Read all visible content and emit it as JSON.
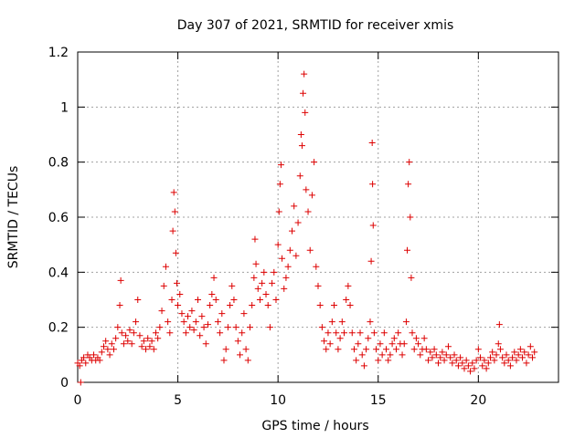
{
  "chart_data": {
    "type": "scatter",
    "title": "Day 307 of 2021, SRMTID for receiver xmis",
    "xlabel": "GPS time / hours",
    "ylabel": "SRMTID / TECUs",
    "xlim": [
      0,
      24
    ],
    "ylim": [
      0,
      1.2
    ],
    "x_ticks": [
      0,
      5,
      10,
      15,
      20
    ],
    "x_tick_labels": [
      "0",
      "5",
      "10",
      "15",
      "20"
    ],
    "y_ticks": [
      0,
      0.2,
      0.4,
      0.6,
      0.8,
      1.0,
      1.2
    ],
    "y_tick_labels": [
      "0",
      "0.2",
      "0.4",
      "0.6",
      "0.8",
      "1",
      "1.2"
    ],
    "grid": true,
    "marker": "+",
    "color": "#dd0000",
    "series": [
      {
        "name": "SRMTID",
        "points": [
          [
            0.0,
            0.07
          ],
          [
            0.1,
            0.06
          ],
          [
            0.15,
            0.0
          ],
          [
            0.2,
            0.08
          ],
          [
            0.3,
            0.09
          ],
          [
            0.4,
            0.07
          ],
          [
            0.5,
            0.1
          ],
          [
            0.6,
            0.09
          ],
          [
            0.7,
            0.08
          ],
          [
            0.8,
            0.1
          ],
          [
            0.9,
            0.08
          ],
          [
            1.0,
            0.09
          ],
          [
            1.1,
            0.08
          ],
          [
            1.2,
            0.11
          ],
          [
            1.3,
            0.13
          ],
          [
            1.4,
            0.15
          ],
          [
            1.5,
            0.12
          ],
          [
            1.6,
            0.1
          ],
          [
            1.7,
            0.14
          ],
          [
            1.8,
            0.12
          ],
          [
            1.9,
            0.16
          ],
          [
            2.0,
            0.2
          ],
          [
            2.1,
            0.28
          ],
          [
            2.15,
            0.37
          ],
          [
            2.2,
            0.18
          ],
          [
            2.3,
            0.14
          ],
          [
            2.4,
            0.17
          ],
          [
            2.5,
            0.15
          ],
          [
            2.6,
            0.19
          ],
          [
            2.7,
            0.14
          ],
          [
            2.8,
            0.18
          ],
          [
            2.9,
            0.22
          ],
          [
            3.0,
            0.3
          ],
          [
            3.1,
            0.17
          ],
          [
            3.2,
            0.13
          ],
          [
            3.3,
            0.15
          ],
          [
            3.4,
            0.12
          ],
          [
            3.5,
            0.16
          ],
          [
            3.6,
            0.13
          ],
          [
            3.7,
            0.15
          ],
          [
            3.8,
            0.12
          ],
          [
            3.9,
            0.18
          ],
          [
            4.0,
            0.16
          ],
          [
            4.1,
            0.2
          ],
          [
            4.2,
            0.26
          ],
          [
            4.3,
            0.35
          ],
          [
            4.4,
            0.42
          ],
          [
            4.5,
            0.22
          ],
          [
            4.6,
            0.18
          ],
          [
            4.7,
            0.3
          ],
          [
            4.75,
            0.55
          ],
          [
            4.8,
            0.69
          ],
          [
            4.85,
            0.62
          ],
          [
            4.9,
            0.47
          ],
          [
            4.95,
            0.36
          ],
          [
            5.0,
            0.28
          ],
          [
            5.1,
            0.32
          ],
          [
            5.2,
            0.25
          ],
          [
            5.3,
            0.22
          ],
          [
            5.4,
            0.18
          ],
          [
            5.5,
            0.24
          ],
          [
            5.6,
            0.2
          ],
          [
            5.7,
            0.26
          ],
          [
            5.8,
            0.19
          ],
          [
            5.9,
            0.22
          ],
          [
            6.0,
            0.3
          ],
          [
            6.1,
            0.17
          ],
          [
            6.2,
            0.24
          ],
          [
            6.3,
            0.2
          ],
          [
            6.4,
            0.14
          ],
          [
            6.5,
            0.21
          ],
          [
            6.6,
            0.28
          ],
          [
            6.7,
            0.32
          ],
          [
            6.8,
            0.38
          ],
          [
            6.9,
            0.3
          ],
          [
            7.0,
            0.22
          ],
          [
            7.1,
            0.18
          ],
          [
            7.2,
            0.25
          ],
          [
            7.3,
            0.08
          ],
          [
            7.4,
            0.12
          ],
          [
            7.5,
            0.2
          ],
          [
            7.6,
            0.28
          ],
          [
            7.7,
            0.35
          ],
          [
            7.8,
            0.3
          ],
          [
            7.9,
            0.2
          ],
          [
            8.0,
            0.15
          ],
          [
            8.1,
            0.1
          ],
          [
            8.2,
            0.18
          ],
          [
            8.3,
            0.25
          ],
          [
            8.4,
            0.12
          ],
          [
            8.5,
            0.08
          ],
          [
            8.6,
            0.2
          ],
          [
            8.7,
            0.28
          ],
          [
            8.8,
            0.38
          ],
          [
            8.85,
            0.52
          ],
          [
            8.9,
            0.43
          ],
          [
            9.0,
            0.34
          ],
          [
            9.1,
            0.3
          ],
          [
            9.2,
            0.36
          ],
          [
            9.3,
            0.4
          ],
          [
            9.4,
            0.32
          ],
          [
            9.5,
            0.28
          ],
          [
            9.6,
            0.2
          ],
          [
            9.7,
            0.36
          ],
          [
            9.8,
            0.4
          ],
          [
            9.9,
            0.3
          ],
          [
            10.0,
            0.5
          ],
          [
            10.05,
            0.62
          ],
          [
            10.1,
            0.72
          ],
          [
            10.15,
            0.79
          ],
          [
            10.2,
            0.45
          ],
          [
            10.3,
            0.34
          ],
          [
            10.4,
            0.38
          ],
          [
            10.5,
            0.42
          ],
          [
            10.6,
            0.48
          ],
          [
            10.7,
            0.55
          ],
          [
            10.8,
            0.64
          ],
          [
            10.9,
            0.46
          ],
          [
            11.0,
            0.58
          ],
          [
            11.1,
            0.75
          ],
          [
            11.15,
            0.9
          ],
          [
            11.2,
            0.86
          ],
          [
            11.25,
            1.05
          ],
          [
            11.3,
            1.12
          ],
          [
            11.35,
            0.98
          ],
          [
            11.4,
            0.7
          ],
          [
            11.5,
            0.62
          ],
          [
            11.6,
            0.48
          ],
          [
            11.7,
            0.68
          ],
          [
            11.8,
            0.8
          ],
          [
            11.9,
            0.42
          ],
          [
            12.0,
            0.35
          ],
          [
            12.1,
            0.28
          ],
          [
            12.2,
            0.2
          ],
          [
            12.3,
            0.15
          ],
          [
            12.4,
            0.12
          ],
          [
            12.5,
            0.18
          ],
          [
            12.6,
            0.14
          ],
          [
            12.7,
            0.22
          ],
          [
            12.8,
            0.28
          ],
          [
            12.9,
            0.18
          ],
          [
            13.0,
            0.12
          ],
          [
            13.1,
            0.16
          ],
          [
            13.2,
            0.22
          ],
          [
            13.3,
            0.18
          ],
          [
            13.4,
            0.3
          ],
          [
            13.5,
            0.35
          ],
          [
            13.6,
            0.28
          ],
          [
            13.7,
            0.18
          ],
          [
            13.8,
            0.12
          ],
          [
            13.9,
            0.08
          ],
          [
            14.0,
            0.14
          ],
          [
            14.1,
            0.18
          ],
          [
            14.2,
            0.1
          ],
          [
            14.3,
            0.06
          ],
          [
            14.4,
            0.12
          ],
          [
            14.5,
            0.16
          ],
          [
            14.6,
            0.22
          ],
          [
            14.65,
            0.44
          ],
          [
            14.7,
            0.87
          ],
          [
            14.72,
            0.72
          ],
          [
            14.75,
            0.57
          ],
          [
            14.8,
            0.18
          ],
          [
            14.9,
            0.12
          ],
          [
            15.0,
            0.08
          ],
          [
            15.1,
            0.14
          ],
          [
            15.2,
            0.1
          ],
          [
            15.3,
            0.18
          ],
          [
            15.4,
            0.12
          ],
          [
            15.5,
            0.08
          ],
          [
            15.6,
            0.1
          ],
          [
            15.7,
            0.14
          ],
          [
            15.8,
            0.16
          ],
          [
            15.9,
            0.12
          ],
          [
            16.0,
            0.18
          ],
          [
            16.1,
            0.14
          ],
          [
            16.2,
            0.1
          ],
          [
            16.3,
            0.14
          ],
          [
            16.4,
            0.22
          ],
          [
            16.45,
            0.48
          ],
          [
            16.5,
            0.72
          ],
          [
            16.55,
            0.8
          ],
          [
            16.6,
            0.6
          ],
          [
            16.65,
            0.38
          ],
          [
            16.7,
            0.18
          ],
          [
            16.8,
            0.12
          ],
          [
            16.9,
            0.16
          ],
          [
            17.0,
            0.14
          ],
          [
            17.1,
            0.1
          ],
          [
            17.2,
            0.12
          ],
          [
            17.3,
            0.16
          ],
          [
            17.4,
            0.12
          ],
          [
            17.5,
            0.08
          ],
          [
            17.6,
            0.11
          ],
          [
            17.7,
            0.09
          ],
          [
            17.8,
            0.12
          ],
          [
            17.9,
            0.1
          ],
          [
            18.0,
            0.07
          ],
          [
            18.1,
            0.09
          ],
          [
            18.2,
            0.11
          ],
          [
            18.3,
            0.08
          ],
          [
            18.4,
            0.1
          ],
          [
            18.5,
            0.13
          ],
          [
            18.6,
            0.09
          ],
          [
            18.7,
            0.07
          ],
          [
            18.8,
            0.1
          ],
          [
            18.9,
            0.08
          ],
          [
            19.0,
            0.06
          ],
          [
            19.1,
            0.09
          ],
          [
            19.2,
            0.07
          ],
          [
            19.3,
            0.05
          ],
          [
            19.4,
            0.08
          ],
          [
            19.5,
            0.06
          ],
          [
            19.6,
            0.04
          ],
          [
            19.7,
            0.07
          ],
          [
            19.8,
            0.05
          ],
          [
            19.9,
            0.08
          ],
          [
            20.0,
            0.12
          ],
          [
            20.1,
            0.09
          ],
          [
            20.2,
            0.06
          ],
          [
            20.3,
            0.08
          ],
          [
            20.4,
            0.05
          ],
          [
            20.5,
            0.07
          ],
          [
            20.6,
            0.09
          ],
          [
            20.7,
            0.11
          ],
          [
            20.8,
            0.08
          ],
          [
            20.9,
            0.1
          ],
          [
            21.0,
            0.14
          ],
          [
            21.05,
            0.21
          ],
          [
            21.1,
            0.12
          ],
          [
            21.2,
            0.09
          ],
          [
            21.3,
            0.07
          ],
          [
            21.4,
            0.1
          ],
          [
            21.5,
            0.08
          ],
          [
            21.6,
            0.06
          ],
          [
            21.7,
            0.09
          ],
          [
            21.8,
            0.11
          ],
          [
            21.9,
            0.08
          ],
          [
            22.0,
            0.1
          ],
          [
            22.1,
            0.12
          ],
          [
            22.2,
            0.09
          ],
          [
            22.3,
            0.11
          ],
          [
            22.4,
            0.07
          ],
          [
            22.5,
            0.1
          ],
          [
            22.6,
            0.13
          ],
          [
            22.7,
            0.09
          ],
          [
            22.8,
            0.11
          ]
        ]
      }
    ]
  }
}
